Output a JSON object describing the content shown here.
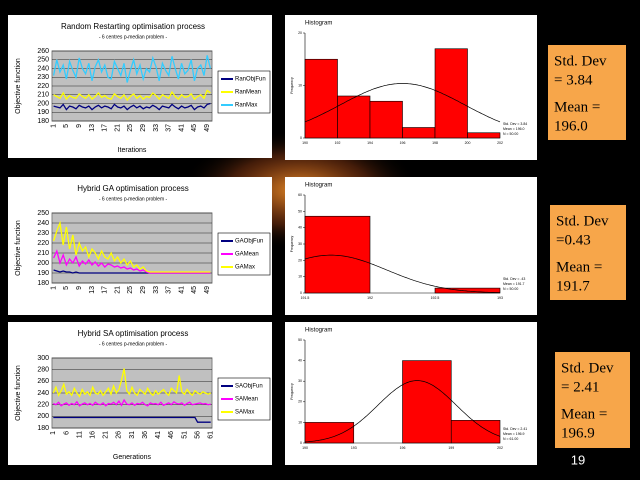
{
  "chart_data": [
    {
      "type": "line",
      "title": "Random Restarting optimisation process",
      "subtitle": "- 6 centres p-median problem -",
      "y_label": "Objective function",
      "x_label": "Iterations",
      "categories": [
        "1",
        null,
        null,
        null,
        "5",
        null,
        null,
        null,
        "9",
        null,
        null,
        null,
        "13",
        null,
        null,
        null,
        "17",
        null,
        null,
        null,
        "21",
        null,
        null,
        null,
        "25",
        null,
        null,
        null,
        "29",
        null,
        null,
        null,
        "33",
        null,
        null,
        null,
        "37",
        null,
        null,
        null,
        "41",
        null,
        null,
        null,
        "45",
        null,
        null,
        null,
        "49",
        null
      ],
      "ylim": [
        180,
        260
      ],
      "yticks": [
        180,
        190,
        200,
        210,
        220,
        230,
        240,
        250,
        260
      ],
      "series": [
        {
          "name": "RanObjFun",
          "color": "#000080",
          "values": [
            197,
            196,
            195,
            199,
            193,
            197,
            196,
            194,
            198,
            196,
            195,
            197,
            193,
            196,
            198,
            195,
            197,
            196,
            194,
            199,
            196,
            195,
            197,
            193,
            196,
            198,
            195,
            197,
            194,
            196,
            195,
            198,
            196,
            193,
            197,
            196,
            195,
            199,
            196,
            194,
            197,
            195,
            196,
            198,
            193,
            196,
            197,
            195,
            199,
            200
          ]
        },
        {
          "name": "RanMean",
          "color": "#ffff00",
          "values": [
            210,
            208,
            206,
            212,
            205,
            209,
            207,
            206,
            211,
            208,
            206,
            210,
            205,
            208,
            212,
            207,
            209,
            206,
            205,
            211,
            208,
            206,
            210,
            204,
            208,
            211,
            206,
            209,
            205,
            208,
            207,
            212,
            209,
            205,
            210,
            208,
            206,
            213,
            208,
            205,
            210,
            207,
            208,
            211,
            205,
            208,
            210,
            206,
            215,
            212
          ]
        },
        {
          "name": "RanMax",
          "color": "#33ccff",
          "values": [
            232,
            250,
            236,
            244,
            228,
            248,
            238,
            230,
            252,
            240,
            234,
            246,
            226,
            242,
            250,
            236,
            244,
            230,
            228,
            248,
            240,
            232,
            246,
            224,
            238,
            250,
            234,
            244,
            228,
            240,
            236,
            252,
            242,
            226,
            246,
            238,
            232,
            254,
            240,
            228,
            246,
            234,
            238,
            250,
            226,
            240,
            244,
            232,
            255,
            240
          ]
        }
      ]
    },
    {
      "type": "histogram",
      "title": "Histogram",
      "y_label": "Frequency",
      "bins": [
        190,
        192,
        194,
        196,
        198,
        200,
        202
      ],
      "counts": [
        15,
        8,
        7,
        2,
        17,
        1
      ],
      "color": "#ff0000",
      "ylim": [
        0,
        20
      ],
      "yticks": [
        0,
        10,
        20
      ],
      "stats": [
        "Std. Dev = 3.84",
        "Mean = 196.0",
        "N = 50.00"
      ],
      "curve": {
        "mean": 196.0,
        "std": 3.84,
        "n": 50
      }
    },
    {
      "type": "line",
      "title": "Hybrid GA optimisation process",
      "subtitle": "- 6 centres p-median problem -",
      "y_label": "Objective function",
      "categories": [
        "1",
        null,
        null,
        null,
        "5",
        null,
        null,
        null,
        "9",
        null,
        null,
        null,
        "13",
        null,
        null,
        null,
        "17",
        null,
        null,
        null,
        "21",
        null,
        null,
        null,
        "25",
        null,
        null,
        null,
        "29",
        null,
        null,
        null,
        "33",
        null,
        null,
        null,
        "37",
        null,
        null,
        null,
        "41",
        null,
        null,
        null,
        "45",
        null,
        null,
        null,
        "49",
        null
      ],
      "ylim": [
        180,
        250
      ],
      "yticks": [
        180,
        190,
        200,
        210,
        220,
        230,
        240,
        250
      ],
      "series": [
        {
          "name": "GAObjFun",
          "color": "#000080",
          "values": [
            193,
            192,
            191,
            192,
            191,
            191,
            190,
            191,
            190,
            190,
            190,
            190,
            190,
            190,
            190,
            190,
            190,
            190,
            190,
            190,
            190,
            190,
            190,
            190,
            190,
            190,
            190,
            190,
            190,
            190,
            190,
            190,
            190,
            190,
            190,
            190,
            190,
            190,
            190,
            190,
            190,
            190,
            190,
            190,
            190,
            190,
            190,
            190,
            190,
            190
          ]
        },
        {
          "name": "GAMean",
          "color": "#ff00ff",
          "values": [
            205,
            212,
            200,
            208,
            198,
            204,
            200,
            206,
            197,
            202,
            199,
            203,
            198,
            201,
            197,
            200,
            196,
            199,
            198,
            196,
            197,
            195,
            196,
            194,
            195,
            193,
            194,
            192,
            193,
            191,
            190,
            190,
            190,
            190,
            190,
            190,
            190,
            190,
            190,
            190,
            190,
            190,
            190,
            190,
            190,
            190,
            190,
            190,
            190,
            190
          ]
        },
        {
          "name": "GAMax",
          "color": "#ffff00",
          "values": [
            222,
            232,
            240,
            218,
            236,
            214,
            228,
            208,
            220,
            212,
            216,
            206,
            214,
            210,
            204,
            212,
            206,
            204,
            210,
            202,
            206,
            200,
            204,
            198,
            202,
            196,
            198,
            194,
            196,
            192,
            191,
            191,
            191,
            191,
            191,
            191,
            191,
            191,
            191,
            191,
            191,
            191,
            191,
            191,
            191,
            191,
            191,
            191,
            191,
            191
          ]
        }
      ]
    },
    {
      "type": "histogram",
      "title": "Histogram",
      "y_label": "Frequency",
      "bins": [
        191.5,
        192.0,
        192.5,
        193.0
      ],
      "counts": [
        47,
        0,
        3
      ],
      "color": "#ff0000",
      "ylim": [
        0,
        60
      ],
      "yticks": [
        0,
        10,
        20,
        30,
        40,
        50,
        60
      ],
      "stats": [
        "Std. Dev = .43",
        "Mean = 191.7",
        "N = 50.00"
      ],
      "curve": {
        "mean": 191.7,
        "std": 0.43,
        "n": 50
      }
    },
    {
      "type": "line",
      "title": "Hybrid SA optimisation process",
      "subtitle": "- 6 centres p-median problem -",
      "y_label": "Objective function",
      "x_label": "Generations",
      "categories": [
        "1",
        null,
        null,
        null,
        null,
        "6",
        null,
        null,
        null,
        null,
        "11",
        null,
        null,
        null,
        null,
        "16",
        null,
        null,
        null,
        null,
        "21",
        null,
        null,
        null,
        null,
        "26",
        null,
        null,
        null,
        null,
        "31",
        null,
        null,
        null,
        null,
        "36",
        null,
        null,
        null,
        null,
        "41",
        null,
        null,
        null,
        null,
        "46",
        null,
        null,
        null,
        null,
        "51",
        null,
        null,
        null,
        null,
        "56",
        null,
        null,
        null,
        null,
        "61"
      ],
      "ylim": [
        180,
        300
      ],
      "yticks": [
        180,
        200,
        220,
        240,
        260,
        280,
        300
      ],
      "series": [
        {
          "name": "SAObjFun",
          "color": "#000080",
          "values": [
            198,
            198,
            198,
            198,
            198,
            198,
            198,
            198,
            198,
            198,
            198,
            198,
            198,
            198,
            198,
            198,
            198,
            198,
            198,
            198,
            198,
            198,
            198,
            198,
            198,
            198,
            198,
            198,
            198,
            198,
            198,
            198,
            198,
            198,
            198,
            198,
            198,
            198,
            198,
            198,
            198,
            198,
            198,
            198,
            198,
            198,
            198,
            198,
            198,
            198,
            198,
            198,
            198,
            198,
            198,
            190,
            190,
            190,
            190,
            190,
            190
          ]
        },
        {
          "name": "SAMean",
          "color": "#ff00ff",
          "values": [
            222,
            220,
            224,
            218,
            221,
            223,
            219,
            222,
            220,
            225,
            218,
            221,
            223,
            220,
            222,
            219,
            224,
            221,
            220,
            223,
            218,
            222,
            221,
            224,
            220,
            226,
            219,
            228,
            221,
            220,
            223,
            219,
            222,
            221,
            224,
            220,
            218,
            223,
            221,
            222,
            220,
            224,
            219,
            221,
            223,
            220,
            225,
            222,
            221,
            223,
            219,
            222,
            224,
            220,
            221,
            222,
            223,
            221,
            222,
            220,
            221
          ]
        },
        {
          "name": "SAMax",
          "color": "#ffff00",
          "values": [
            240,
            250,
            236,
            244,
            255,
            238,
            242,
            236,
            248,
            240,
            234,
            246,
            238,
            242,
            236,
            250,
            240,
            238,
            244,
            236,
            242,
            248,
            238,
            252,
            240,
            246,
            262,
            282,
            244,
            238,
            250,
            240,
            236,
            246,
            242,
            238,
            248,
            240,
            236,
            244,
            238,
            242,
            246,
            240,
            236,
            248,
            244,
            240,
            270,
            242,
            238,
            246,
            240,
            236,
            244,
            240,
            238,
            242,
            240,
            238,
            240
          ]
        }
      ]
    },
    {
      "type": "histogram",
      "title": "Histogram",
      "y_label": "Frequency",
      "bins": [
        190,
        193,
        196,
        199,
        202
      ],
      "counts": [
        10,
        0,
        40,
        11
      ],
      "color": "#ff0000",
      "ylim": [
        0,
        50
      ],
      "yticks": [
        0,
        10,
        20,
        30,
        40,
        50
      ],
      "stats": [
        "Std. Dev = 2.41",
        "Mean = 196.9",
        "N = 61.00"
      ],
      "curve": {
        "mean": 196.9,
        "std": 2.41,
        "n": 61
      }
    }
  ],
  "side_boxes": [
    {
      "lines": [
        "Std. Dev",
        "= 3.84",
        "Mean =",
        "196.0"
      ]
    },
    {
      "lines": [
        "Std. Dev",
        "=0.43",
        "Mean =",
        "191.7"
      ]
    },
    {
      "lines": [
        "Std. Dev",
        "= 2.41",
        "Mean =",
        "196.9"
      ]
    }
  ],
  "page_number": "19"
}
